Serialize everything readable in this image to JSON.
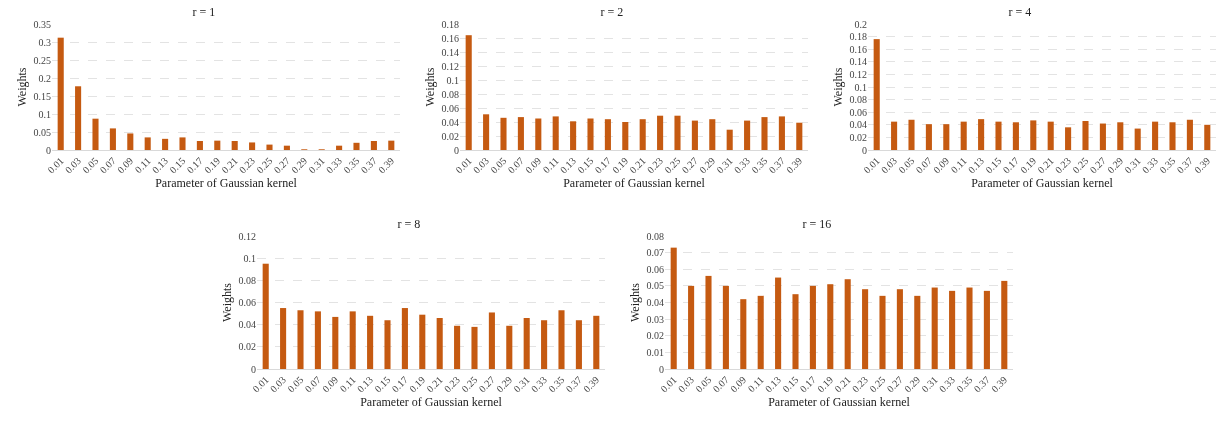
{
  "chart_data": [
    {
      "type": "bar",
      "title": "r = 1",
      "xlabel": "Parameter of Gaussian kernel",
      "ylabel": "Weights",
      "color": "#c55a11",
      "grid": "y",
      "legend": false,
      "categories": [
        "0.01",
        "0.03",
        "0.05",
        "0.07",
        "0.09",
        "0.11",
        "0.13",
        "0.15",
        "0.17",
        "0.19",
        "0.21",
        "0.23",
        "0.25",
        "0.27",
        "0.29",
        "0.31",
        "0.33",
        "0.35",
        "0.37",
        "0.39"
      ],
      "values": [
        0.312,
        0.177,
        0.087,
        0.06,
        0.046,
        0.035,
        0.031,
        0.035,
        0.025,
        0.026,
        0.025,
        0.021,
        0.015,
        0.012,
        0.002,
        0.002,
        0.012,
        0.02,
        0.025,
        0.026
      ],
      "ylim": [
        0,
        0.35
      ],
      "yticks": [
        0,
        0.05,
        0.1,
        0.15,
        0.2,
        0.25,
        0.3,
        0.35
      ]
    },
    {
      "type": "bar",
      "title": "r = 2",
      "xlabel": "Parameter of Gaussian kernel",
      "ylabel": "Weights",
      "color": "#c55a11",
      "grid": "y",
      "legend": false,
      "categories": [
        "0.01",
        "0.03",
        "0.05",
        "0.07",
        "0.09",
        "0.11",
        "0.13",
        "0.15",
        "0.17",
        "0.19",
        "0.21",
        "0.23",
        "0.25",
        "0.27",
        "0.29",
        "0.31",
        "0.33",
        "0.35",
        "0.37",
        "0.39"
      ],
      "values": [
        0.164,
        0.051,
        0.046,
        0.047,
        0.045,
        0.048,
        0.041,
        0.045,
        0.044,
        0.04,
        0.044,
        0.049,
        0.049,
        0.042,
        0.044,
        0.029,
        0.042,
        0.047,
        0.048,
        0.039
      ],
      "ylim": [
        0,
        0.18
      ],
      "yticks": [
        0,
        0.02,
        0.04,
        0.06,
        0.08,
        0.1,
        0.12,
        0.14,
        0.16,
        0.18
      ]
    },
    {
      "type": "bar",
      "title": "r = 4",
      "xlabel": "Parameter of Gaussian kernel",
      "ylabel": "Weights",
      "color": "#c55a11",
      "grid": "y",
      "legend": false,
      "categories": [
        "0.01",
        "0.03",
        "0.05",
        "0.07",
        "0.09",
        "0.11",
        "0.13",
        "0.15",
        "0.17",
        "0.19",
        "0.21",
        "0.23",
        "0.25",
        "0.27",
        "0.29",
        "0.31",
        "0.33",
        "0.35",
        "0.37",
        "0.39"
      ],
      "values": [
        0.176,
        0.045,
        0.048,
        0.041,
        0.041,
        0.045,
        0.049,
        0.045,
        0.044,
        0.047,
        0.045,
        0.036,
        0.046,
        0.042,
        0.044,
        0.034,
        0.045,
        0.044,
        0.048,
        0.04
      ],
      "ylim": [
        0,
        0.2
      ],
      "yticks": [
        0,
        0.02,
        0.04,
        0.06,
        0.08,
        0.1,
        0.12,
        0.14,
        0.16,
        0.18,
        0.2
      ]
    },
    {
      "type": "bar",
      "title": "r = 8",
      "xlabel": "Parameter of Gaussian kernel",
      "ylabel": "Weights",
      "color": "#c55a11",
      "grid": "y",
      "legend": false,
      "categories": [
        "0.01",
        "0.03",
        "0.05",
        "0.07",
        "0.09",
        "0.11",
        "0.13",
        "0.15",
        "0.17",
        "0.19",
        "0.21",
        "0.23",
        "0.25",
        "0.27",
        "0.29",
        "0.31",
        "0.33",
        "0.35",
        "0.37",
        "0.39"
      ],
      "values": [
        0.095,
        0.055,
        0.053,
        0.052,
        0.047,
        0.052,
        0.048,
        0.044,
        0.055,
        0.049,
        0.046,
        0.039,
        0.038,
        0.051,
        0.039,
        0.046,
        0.044,
        0.053,
        0.044,
        0.048
      ],
      "ylim": [
        0,
        0.12
      ],
      "yticks": [
        0,
        0.02,
        0.04,
        0.06,
        0.08,
        0.1,
        0.12
      ]
    },
    {
      "type": "bar",
      "title": "r = 16",
      "xlabel": "Parameter of Gaussian kernel",
      "ylabel": "Weights",
      "color": "#c55a11",
      "grid": "y",
      "legend": false,
      "categories": [
        "0.01",
        "0.03",
        "0.05",
        "0.07",
        "0.09",
        "0.11",
        "0.13",
        "0.15",
        "0.17",
        "0.19",
        "0.21",
        "0.23",
        "0.25",
        "0.27",
        "0.29",
        "0.31",
        "0.33",
        "0.35",
        "0.37",
        "0.39"
      ],
      "values": [
        0.073,
        0.05,
        0.056,
        0.05,
        0.042,
        0.044,
        0.055,
        0.045,
        0.05,
        0.051,
        0.054,
        0.048,
        0.044,
        0.048,
        0.044,
        0.049,
        0.047,
        0.049,
        0.047,
        0.053
      ],
      "ylim": [
        0,
        0.08
      ],
      "yticks": [
        0,
        0.01,
        0.02,
        0.03,
        0.04,
        0.05,
        0.06,
        0.07,
        0.08
      ]
    }
  ]
}
